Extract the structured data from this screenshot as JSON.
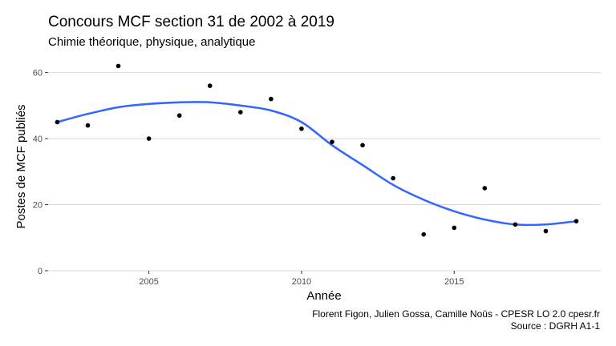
{
  "chart_data": {
    "type": "scatter",
    "title": "Concours MCF section 31 de 2002 à 2019",
    "subtitle": "Chimie théorique, physique, analytique",
    "xlabel": "Année",
    "ylabel": "Postes de MCF publiés",
    "caption_lines": [
      "Florent Figon, Julien Gossa, Camille Noûs - CPESR LO 2.0 cpesr.fr",
      "Source : DGRH A1-1"
    ],
    "xlim": [
      2001.7,
      2019.8
    ],
    "ylim": [
      0,
      65
    ],
    "x_ticks": [
      2005,
      2010,
      2015
    ],
    "y_ticks": [
      0,
      20,
      40,
      60
    ],
    "grid": "horizontal",
    "point_color": "#000000",
    "smooth_color": "#3366ff",
    "x": [
      2002,
      2003,
      2004,
      2005,
      2006,
      2007,
      2008,
      2009,
      2010,
      2011,
      2012,
      2013,
      2014,
      2015,
      2016,
      2017,
      2018,
      2019
    ],
    "y": [
      45,
      44,
      62,
      40,
      47,
      56,
      48,
      52,
      43,
      39,
      38,
      28,
      11,
      13,
      25,
      14,
      12,
      15
    ],
    "smooth": {
      "x": [
        2002,
        2003,
        2004,
        2005,
        2006,
        2007,
        2008,
        2009,
        2010,
        2011,
        2012,
        2013,
        2014,
        2015,
        2016,
        2017,
        2018,
        2019
      ],
      "y": [
        45,
        47.5,
        49.5,
        50.5,
        51,
        51,
        50,
        48.5,
        45,
        38,
        32,
        26,
        21.5,
        18,
        15.5,
        14,
        14,
        15
      ]
    }
  }
}
